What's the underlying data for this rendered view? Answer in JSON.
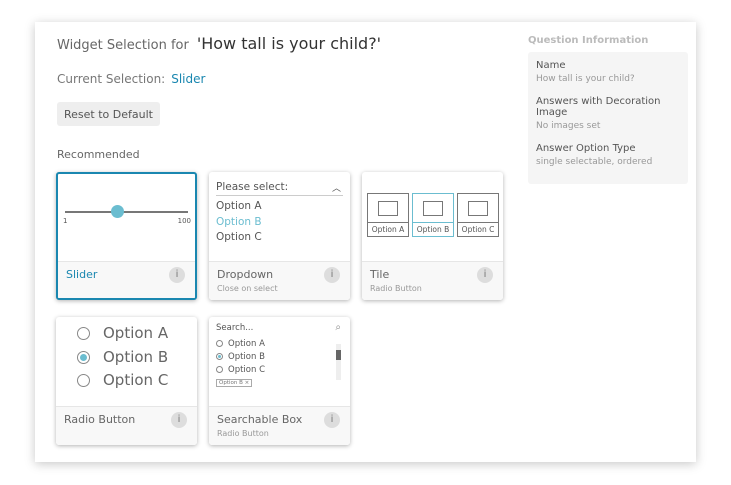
{
  "header": {
    "prefix": "Widget Selection for",
    "question": "'How tall is your child?'"
  },
  "current": {
    "label": "Current Selection:",
    "value": "Slider"
  },
  "reset_label": "Reset to Default",
  "recommended_label": "Recommended",
  "info_glyph": "i",
  "widgets": [
    {
      "name": "Slider",
      "sub": "",
      "selected": true,
      "min": "1",
      "max": "100",
      "value_fraction": 0.38
    },
    {
      "name": "Dropdown",
      "sub": "Close on select",
      "placeholder": "Please select:",
      "options": [
        "Option A",
        "Option B",
        "Option C"
      ],
      "selected_option": "Option B"
    },
    {
      "name": "Tile",
      "sub": "Radio Button",
      "options": [
        "Option A",
        "Option B",
        "Option C"
      ]
    },
    {
      "name": "Radio Button",
      "sub": "",
      "options": [
        "Option A",
        "Option B",
        "Option C"
      ]
    },
    {
      "name": "Searchable Box",
      "sub": "Radio Button",
      "search_placeholder": "Search...",
      "options": [
        "Option A",
        "Option B",
        "Option C"
      ],
      "chip": "Option B ×"
    }
  ],
  "question_info": {
    "title": "Question Information",
    "fields": [
      {
        "key": "Name",
        "value": "How tall is your child?"
      },
      {
        "key": "Answers with Decoration Image",
        "value": "No images set"
      },
      {
        "key": "Answer Option Type",
        "value": "single selectable, ordered"
      }
    ]
  },
  "colors": {
    "accent": "#1a87b0",
    "highlight": "#6bbdd0"
  }
}
